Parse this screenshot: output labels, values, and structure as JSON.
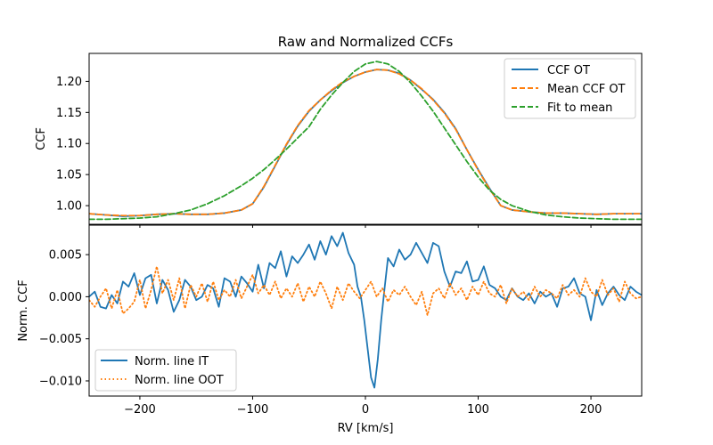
{
  "colors": {
    "blue": "#1f77b4",
    "orange": "#ff7f0e",
    "green": "#2ca02c"
  },
  "chart_data": [
    {
      "type": "line",
      "title": "Raw and Normalized CCFs",
      "ylabel": "CCF",
      "xlim": [
        -245,
        245
      ],
      "ylim": [
        0.97,
        1.245
      ],
      "yticks": [
        1.0,
        1.05,
        1.1,
        1.15,
        1.2
      ],
      "ytick_labels": [
        "1.00",
        "1.05",
        "1.10",
        "1.15",
        "1.20"
      ],
      "legend_position": "top-right",
      "series": [
        {
          "name": "CCF OT",
          "style": "solid",
          "color": "#1f77b4",
          "x": [
            -245,
            -230,
            -215,
            -200,
            -185,
            -170,
            -155,
            -140,
            -125,
            -110,
            -100,
            -90,
            -80,
            -70,
            -60,
            -50,
            -40,
            -30,
            -20,
            -10,
            0,
            10,
            20,
            30,
            40,
            50,
            60,
            70,
            80,
            90,
            100,
            110,
            120,
            130,
            145,
            160,
            175,
            190,
            205,
            220,
            235,
            245
          ],
          "y": [
            0.987,
            0.985,
            0.983,
            0.984,
            0.986,
            0.987,
            0.986,
            0.986,
            0.988,
            0.993,
            1.003,
            1.03,
            1.064,
            1.098,
            1.128,
            1.152,
            1.17,
            1.185,
            1.198,
            1.208,
            1.215,
            1.219,
            1.218,
            1.213,
            1.202,
            1.187,
            1.171,
            1.15,
            1.124,
            1.09,
            1.058,
            1.028,
            1.0,
            0.993,
            0.99,
            0.988,
            0.988,
            0.987,
            0.986,
            0.987,
            0.987,
            0.987
          ]
        },
        {
          "name": "Mean CCF OT",
          "style": "dashed",
          "color": "#ff7f0e",
          "x": [
            -245,
            -230,
            -215,
            -200,
            -185,
            -170,
            -155,
            -140,
            -125,
            -110,
            -100,
            -90,
            -80,
            -70,
            -60,
            -50,
            -40,
            -30,
            -20,
            -10,
            0,
            10,
            20,
            30,
            40,
            50,
            60,
            70,
            80,
            90,
            100,
            110,
            120,
            130,
            145,
            160,
            175,
            190,
            205,
            220,
            235,
            245
          ],
          "y": [
            0.987,
            0.985,
            0.984,
            0.984,
            0.986,
            0.987,
            0.986,
            0.986,
            0.988,
            0.993,
            1.003,
            1.031,
            1.065,
            1.099,
            1.129,
            1.153,
            1.17,
            1.186,
            1.199,
            1.208,
            1.215,
            1.219,
            1.218,
            1.212,
            1.202,
            1.188,
            1.17,
            1.149,
            1.123,
            1.09,
            1.057,
            1.027,
            1.0,
            0.993,
            0.99,
            0.988,
            0.988,
            0.987,
            0.986,
            0.987,
            0.987,
            0.987
          ]
        },
        {
          "name": "Fit to mean",
          "style": "dashed",
          "color": "#2ca02c",
          "x": [
            -245,
            -230,
            -215,
            -200,
            -185,
            -170,
            -155,
            -140,
            -125,
            -110,
            -100,
            -90,
            -80,
            -70,
            -60,
            -50,
            -40,
            -30,
            -20,
            -10,
            0,
            10,
            20,
            30,
            40,
            50,
            60,
            70,
            80,
            90,
            100,
            110,
            120,
            130,
            145,
            160,
            175,
            190,
            205,
            220,
            235,
            245
          ],
          "y": [
            0.978,
            0.978,
            0.979,
            0.98,
            0.982,
            0.987,
            0.993,
            1.003,
            1.016,
            1.032,
            1.044,
            1.058,
            1.074,
            1.091,
            1.109,
            1.127,
            1.155,
            1.178,
            1.198,
            1.216,
            1.228,
            1.232,
            1.228,
            1.216,
            1.198,
            1.176,
            1.152,
            1.125,
            1.098,
            1.071,
            1.046,
            1.025,
            1.01,
            1.0,
            0.991,
            0.985,
            0.982,
            0.98,
            0.979,
            0.978,
            0.978,
            0.978
          ]
        }
      ]
    },
    {
      "type": "line",
      "xlabel": "RV [km/s]",
      "ylabel": "Norm. CCF",
      "xlim": [
        -245,
        245
      ],
      "ylim": [
        -0.0118,
        0.0085
      ],
      "xticks": [
        -200,
        -100,
        0,
        100,
        200
      ],
      "xtick_labels": [
        "−200",
        "−100",
        "0",
        "100",
        "200"
      ],
      "yticks": [
        -0.01,
        -0.005,
        0.0,
        0.005
      ],
      "ytick_labels": [
        "−0.010",
        "−0.005",
        "0.000",
        "0.005"
      ],
      "legend_position": "bottom-left",
      "series": [
        {
          "name": "Norm. line IT",
          "style": "solid",
          "color": "#1f77b4",
          "x": [
            -245,
            -240,
            -235,
            -230,
            -225,
            -220,
            -215,
            -210,
            -205,
            -200,
            -195,
            -190,
            -185,
            -180,
            -175,
            -170,
            -165,
            -160,
            -155,
            -150,
            -145,
            -140,
            -135,
            -130,
            -125,
            -120,
            -115,
            -110,
            -105,
            -100,
            -95,
            -90,
            -85,
            -80,
            -75,
            -70,
            -65,
            -60,
            -55,
            -50,
            -45,
            -40,
            -35,
            -30,
            -25,
            -20,
            -15,
            -10,
            -7,
            -4,
            -1,
            2,
            5,
            8,
            11,
            14,
            17,
            20,
            25,
            30,
            35,
            40,
            45,
            50,
            55,
            60,
            65,
            70,
            75,
            80,
            85,
            90,
            95,
            100,
            105,
            110,
            115,
            120,
            125,
            130,
            135,
            140,
            145,
            150,
            155,
            160,
            165,
            170,
            175,
            180,
            185,
            190,
            195,
            200,
            205,
            210,
            215,
            220,
            225,
            230,
            235,
            240,
            245
          ],
          "y": [
            0.0,
            0.0006,
            -0.0012,
            -0.0014,
            0.0002,
            -0.0008,
            0.0018,
            0.0012,
            0.0028,
            0.0002,
            0.0022,
            0.0026,
            -0.0008,
            0.002,
            0.0008,
            -0.0018,
            -0.0004,
            0.002,
            0.0012,
            -0.0004,
            0.0,
            0.0014,
            0.001,
            -0.0012,
            0.0022,
            0.0018,
            0.0,
            0.0024,
            0.0016,
            0.0006,
            0.0038,
            0.001,
            0.004,
            0.0034,
            0.0054,
            0.0024,
            0.0048,
            0.004,
            0.005,
            0.0062,
            0.0044,
            0.0066,
            0.005,
            0.0072,
            0.006,
            0.0076,
            0.0052,
            0.0038,
            0.0012,
            0.0,
            -0.0028,
            -0.0062,
            -0.0096,
            -0.0108,
            -0.0074,
            -0.0028,
            0.001,
            0.0046,
            0.0036,
            0.0056,
            0.0044,
            0.005,
            0.0064,
            0.0052,
            0.004,
            0.0064,
            0.006,
            0.003,
            0.0012,
            0.003,
            0.0028,
            0.0042,
            0.0018,
            0.002,
            0.0036,
            0.0014,
            0.001,
            0.0,
            -0.0004,
            0.001,
            0.0,
            -0.0004,
            0.0004,
            -0.0008,
            0.0006,
            0.0,
            0.0004,
            -0.0012,
            0.001,
            0.0012,
            0.0022,
            0.0004,
            0.0,
            -0.0028,
            0.0008,
            -0.001,
            0.0004,
            0.0012,
            0.0002,
            -0.0004,
            0.0012,
            0.0006,
            0.0002
          ]
        },
        {
          "name": "Norm. line OOT",
          "style": "dotted",
          "color": "#ff7f0e",
          "x": [
            -245,
            -240,
            -235,
            -230,
            -225,
            -220,
            -215,
            -210,
            -205,
            -200,
            -195,
            -190,
            -185,
            -180,
            -175,
            -170,
            -165,
            -160,
            -155,
            -150,
            -145,
            -140,
            -135,
            -130,
            -125,
            -120,
            -115,
            -110,
            -105,
            -100,
            -95,
            -90,
            -85,
            -80,
            -75,
            -70,
            -65,
            -60,
            -55,
            -50,
            -45,
            -40,
            -35,
            -30,
            -25,
            -20,
            -15,
            -10,
            -5,
            0,
            5,
            10,
            15,
            20,
            25,
            30,
            35,
            40,
            45,
            50,
            55,
            60,
            65,
            70,
            75,
            80,
            85,
            90,
            95,
            100,
            105,
            110,
            115,
            120,
            125,
            130,
            135,
            140,
            145,
            150,
            155,
            160,
            165,
            170,
            175,
            180,
            185,
            190,
            195,
            200,
            205,
            210,
            215,
            220,
            225,
            230,
            235,
            240,
            245
          ],
          "y": [
            -0.0004,
            -0.0012,
            0.0,
            0.001,
            -0.0014,
            0.0008,
            -0.002,
            -0.0014,
            -0.0006,
            0.002,
            -0.0014,
            0.0008,
            0.0036,
            0.0004,
            0.002,
            -0.0004,
            0.0022,
            -0.0014,
            0.0014,
            0.0,
            0.0016,
            -0.0006,
            0.0018,
            -0.0004,
            0.0008,
            0.0,
            0.002,
            -0.0002,
            0.0012,
            0.0026,
            0.0004,
            0.0014,
            0.0002,
            0.0018,
            -0.0002,
            0.001,
            0.0,
            0.0016,
            -0.0006,
            0.0012,
            0.0,
            0.0018,
            0.0004,
            -0.0014,
            0.0012,
            -0.0004,
            0.0016,
            0.0006,
            -0.0002,
            0.0008,
            0.0018,
            0.0,
            0.001,
            -0.0006,
            0.0008,
            0.0002,
            0.0012,
            0.0,
            -0.001,
            0.0006,
            -0.0022,
            0.0004,
            0.001,
            -0.0002,
            0.0016,
            0.0002,
            0.001,
            -0.0004,
            0.0012,
            0.0002,
            0.0018,
            0.0004,
            0.0,
            0.0014,
            -0.0008,
            0.001,
            0.0,
            0.0006,
            -0.0004,
            0.0012,
            0.0,
            0.0008,
            0.0004,
            -0.0002,
            0.0014,
            0.0002,
            0.0008,
            0.0,
            0.0022,
            0.0006,
            0.0,
            0.002,
            0.0002,
            0.001,
            -0.0006,
            0.0018,
            0.0004,
            -0.0002,
            0.0
          ]
        }
      ]
    }
  ]
}
